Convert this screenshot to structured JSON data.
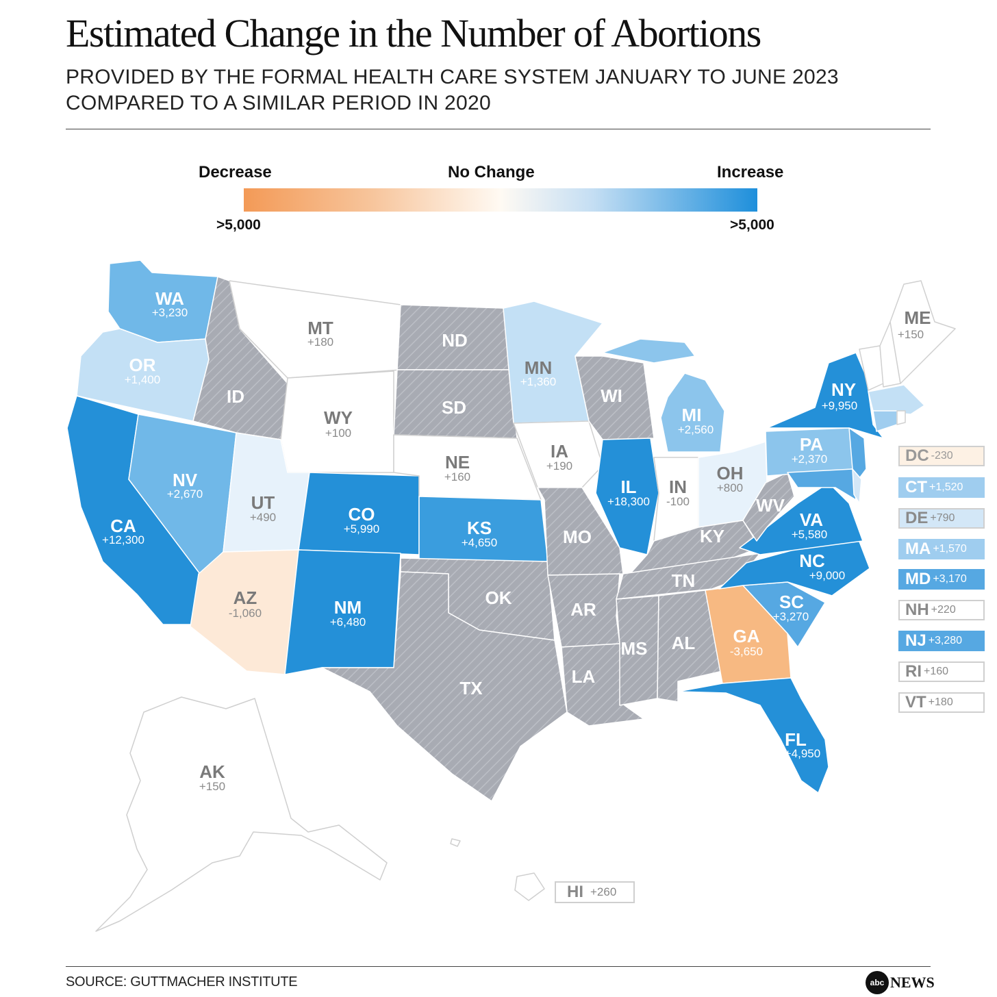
{
  "title": "Estimated Change in the Number of Abortions",
  "subtitle_line1": "PROVIDED BY THE FORMAL HEALTH CARE SYSTEM JANUARY TO JUNE 2023",
  "subtitle_line2": "COMPARED TO A SIMILAR PERIOD IN 2020",
  "legend": {
    "decrease": "Decrease",
    "no_change": "No Change",
    "increase": "Increase",
    "low_end": ">5,000",
    "high_end": ">5,000",
    "colors": {
      "decrease": "#f39a57",
      "neutral": "#ffffff",
      "increase": "#1e8fdb",
      "no_data": "#a8abb3"
    }
  },
  "states": {
    "WA": {
      "abbr": "WA",
      "value": "+3,230"
    },
    "OR": {
      "abbr": "OR",
      "value": "+1,400"
    },
    "CA": {
      "abbr": "CA",
      "value": "+12,300"
    },
    "NV": {
      "abbr": "NV",
      "value": "+2,670"
    },
    "ID": {
      "abbr": "ID"
    },
    "MT": {
      "abbr": "MT",
      "value": "+180"
    },
    "WY": {
      "abbr": "WY",
      "value": "+100"
    },
    "UT": {
      "abbr": "UT",
      "value": "+490"
    },
    "AZ": {
      "abbr": "AZ",
      "value": "-1,060"
    },
    "CO": {
      "abbr": "CO",
      "value": "+5,990"
    },
    "NM": {
      "abbr": "NM",
      "value": "+6,480"
    },
    "ND": {
      "abbr": "ND"
    },
    "SD": {
      "abbr": "SD"
    },
    "NE": {
      "abbr": "NE",
      "value": "+160"
    },
    "KS": {
      "abbr": "KS",
      "value": "+4,650"
    },
    "OK": {
      "abbr": "OK"
    },
    "TX": {
      "abbr": "TX"
    },
    "MN": {
      "abbr": "MN",
      "value": "+1,360"
    },
    "IA": {
      "abbr": "IA",
      "value": "+190"
    },
    "MO": {
      "abbr": "MO"
    },
    "AR": {
      "abbr": "AR"
    },
    "LA": {
      "abbr": "LA"
    },
    "WI": {
      "abbr": "WI"
    },
    "IL": {
      "abbr": "IL",
      "value": "+18,300"
    },
    "MS": {
      "abbr": "MS"
    },
    "MI": {
      "abbr": "MI",
      "value": "+2,560"
    },
    "IN": {
      "abbr": "IN",
      "value": "-100"
    },
    "KY": {
      "abbr": "KY"
    },
    "TN": {
      "abbr": "TN"
    },
    "AL": {
      "abbr": "AL"
    },
    "OH": {
      "abbr": "OH",
      "value": "+800"
    },
    "GA": {
      "abbr": "GA",
      "value": "-3,650"
    },
    "FL": {
      "abbr": "FL",
      "value": "+4,950"
    },
    "WV": {
      "abbr": "WV"
    },
    "VA": {
      "abbr": "VA",
      "value": "+5,580"
    },
    "NC": {
      "abbr": "NC",
      "value": "+9,000"
    },
    "SC": {
      "abbr": "SC",
      "value": "+3,270"
    },
    "PA": {
      "abbr": "PA",
      "value": "+2,370"
    },
    "NY": {
      "abbr": "NY",
      "value": "+9,950"
    },
    "ME": {
      "abbr": "ME",
      "value": "+150"
    },
    "AK": {
      "abbr": "AK",
      "value": "+150"
    }
  },
  "small_states": [
    {
      "abbr": "DC",
      "value": "-230",
      "color": "#fdf1e4",
      "text": "#999999"
    },
    {
      "abbr": "CT",
      "value": "+1,520",
      "color": "#9fcdef",
      "text": "#ffffff"
    },
    {
      "abbr": "DE",
      "value": "+790",
      "color": "#d3e7f7",
      "text": "#8a8a8a"
    },
    {
      "abbr": "MA",
      "value": "+1,570",
      "color": "#9fcdef",
      "text": "#ffffff"
    },
    {
      "abbr": "MD",
      "value": "+3,170",
      "color": "#56a8e2",
      "text": "#ffffff"
    },
    {
      "abbr": "NH",
      "value": "+220",
      "color": "#ffffff",
      "text": "#8a8a8a"
    },
    {
      "abbr": "NJ",
      "value": "+3,280",
      "color": "#56a8e2",
      "text": "#ffffff"
    },
    {
      "abbr": "RI",
      "value": "+160",
      "color": "#ffffff",
      "text": "#8a8a8a"
    },
    {
      "abbr": "VT",
      "value": "+180",
      "color": "#ffffff",
      "text": "#8a8a8a"
    }
  ],
  "hawaii": {
    "abbr": "HI",
    "value": "+260"
  },
  "source": "SOURCE: GUTTMACHER INSTITUTE",
  "logo": {
    "mark": "abc",
    "text": "NEWS"
  }
}
